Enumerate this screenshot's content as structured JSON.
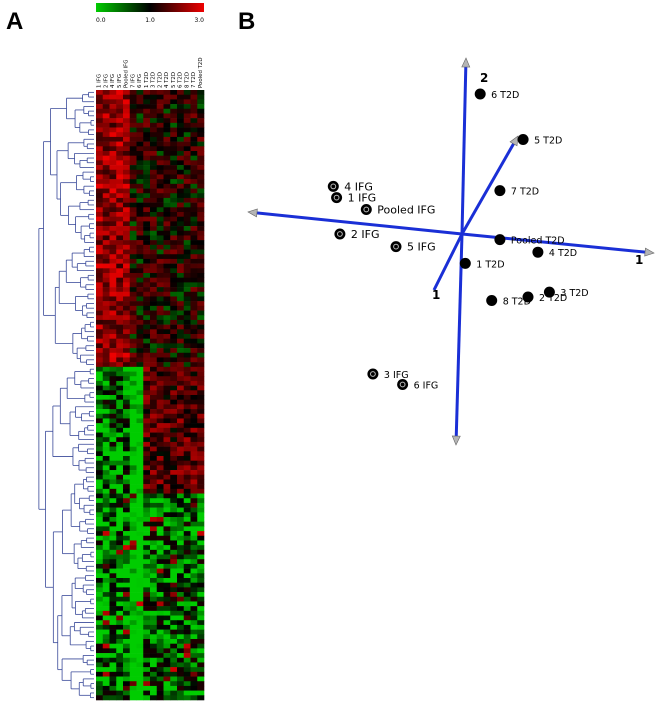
{
  "panels": {
    "a": "A",
    "b": "B"
  },
  "chart_data": [
    {
      "type": "heatmap",
      "panel": "A",
      "colorbar": {
        "min_label": "0.0",
        "mid_label": "1.0",
        "max_label": "3.0",
        "min": 0,
        "mid": 1,
        "max": 3,
        "colors": [
          "#00cc00",
          "#000000",
          "#ee0000"
        ]
      },
      "columns": [
        "1 IFG",
        "2 IFG",
        "4 IFG",
        "5 IFG",
        "Pooled IFG",
        "7 IFG",
        "6 IFG",
        "1 T2D",
        "3 T2D",
        "2 T2D",
        "4 T2D",
        "5 T2D",
        "6 T2D",
        "8 T2D",
        "7 T2D",
        "Pooled T2D"
      ],
      "rows": 130,
      "pattern": [
        {
          "from": 0,
          "to": 0.45,
          "ifg_level": 2.2,
          "t2d_level": 1.3
        },
        {
          "from": 0.45,
          "to": 0.66,
          "ifg_level": 0.5,
          "t2d_level": 1.7
        },
        {
          "from": 0.66,
          "to": 1.0,
          "ifg_level": 0.4,
          "t2d_level": 0.5
        }
      ]
    },
    {
      "type": "scatter",
      "panel": "B",
      "axes": {
        "x_label": "1",
        "y_label": "2",
        "z_label": "1"
      },
      "points": [
        {
          "label": "6 T2D",
          "x": 0.55,
          "y": 2.0,
          "group": "T2D"
        },
        {
          "label": "5 T2D",
          "x": 1.85,
          "y": 1.35,
          "group": "T2D"
        },
        {
          "label": "7 T2D",
          "x": 1.15,
          "y": 0.62,
          "group": "T2D"
        },
        {
          "label": "Pooled T2D",
          "x": 1.15,
          "y": -0.08,
          "group": "T2D"
        },
        {
          "label": "4 T2D",
          "x": 2.3,
          "y": -0.26,
          "group": "T2D"
        },
        {
          "label": "1 T2D",
          "x": 0.1,
          "y": -0.42,
          "group": "T2D"
        },
        {
          "label": "8 T2D",
          "x": 0.9,
          "y": -0.95,
          "group": "T2D"
        },
        {
          "label": "2 T2D",
          "x": 2.0,
          "y": -0.9,
          "group": "T2D"
        },
        {
          "label": "3 T2D",
          "x": 2.65,
          "y": -0.83,
          "group": "T2D"
        },
        {
          "label": "4 IFG",
          "x": -3.9,
          "y": 0.68,
          "group": "IFG"
        },
        {
          "label": "1 IFG",
          "x": -3.8,
          "y": 0.52,
          "group": "IFG"
        },
        {
          "label": "Pooled IFG",
          "x": -2.9,
          "y": 0.35,
          "group": "IFG"
        },
        {
          "label": "2 IFG",
          "x": -3.7,
          "y": 0.0,
          "group": "IFG"
        },
        {
          "label": "5 IFG",
          "x": -2.0,
          "y": -0.18,
          "group": "IFG"
        },
        {
          "label": "3 IFG",
          "x": -2.7,
          "y": -2.0,
          "group": "IFG"
        },
        {
          "label": "6 IFG",
          "x": -1.8,
          "y": -2.15,
          "group": "IFG"
        }
      ]
    }
  ]
}
